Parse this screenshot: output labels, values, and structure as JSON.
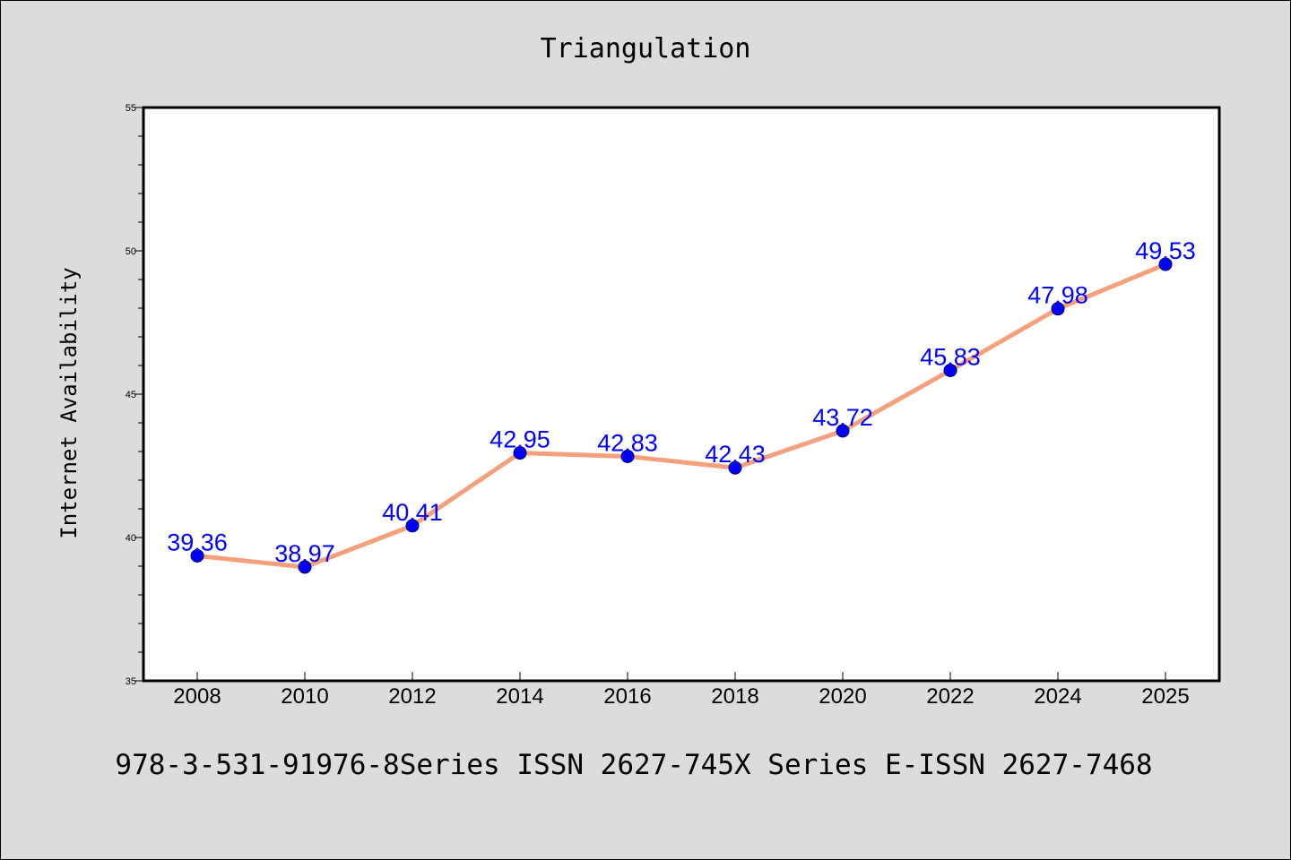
{
  "chart_data": {
    "type": "line",
    "title": "Triangulation",
    "xlabel": "",
    "ylabel": "Internet Availability",
    "categories": [
      "2008",
      "2010",
      "2012",
      "2014",
      "2016",
      "2018",
      "2020",
      "2022",
      "2024",
      "2025"
    ],
    "series": [
      {
        "values": [
          39.36,
          38.97,
          40.41,
          42.95,
          42.83,
          42.43,
          43.72,
          45.83,
          47.98,
          49.53
        ],
        "data_labels": [
          "39.36",
          "38.97",
          "40.41",
          "42.95",
          "42.83",
          "42.43",
          "43.72",
          "45.83",
          "47.98",
          "49.53"
        ],
        "line_color": "#f4a07c",
        "marker_color": "#0000ff",
        "marker_edge_color": "#00005a"
      }
    ],
    "ylim": [
      35,
      55
    ],
    "yticks": [
      "35",
      "40",
      "45",
      "50",
      "55"
    ],
    "y_minor_step": 1,
    "grid": false,
    "legend": "none",
    "label_color": "#0000ff"
  },
  "footer": {
    "text": "978-3-531-91976-8Series ISSN 2627-745X Series E-ISSN 2627-7468"
  },
  "colors": {
    "background": "#dcdcdc",
    "plot_background": "#ffffff",
    "axes": "#000000"
  }
}
